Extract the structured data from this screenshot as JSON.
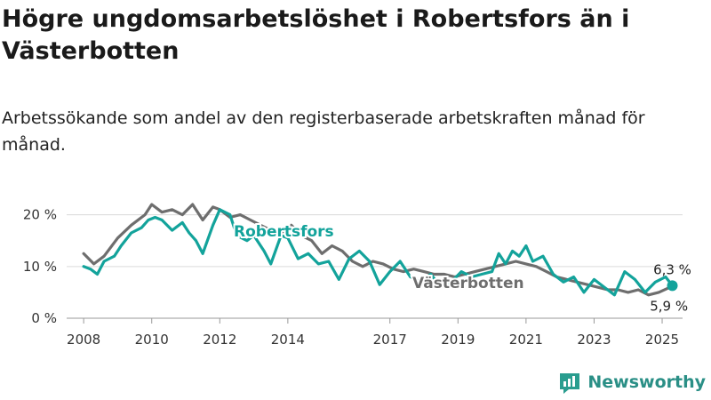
{
  "title": "Högre ungdomsarbetslöshet i Robertsfors än i Västerbotten",
  "subtitle": "Arbetssökande som andel av den registerbaserade arbetskraften månad för månad.",
  "brand": {
    "name": "Newsworthy",
    "color": "#2a9d8f"
  },
  "chart_data": {
    "type": "line",
    "ylim": [
      0,
      22
    ],
    "xlim": [
      2007.5,
      2025.6
    ],
    "y_ticks": [
      {
        "value": 0,
        "label": "0 %"
      },
      {
        "value": 10,
        "label": "10 %"
      },
      {
        "value": 20,
        "label": "20 %"
      }
    ],
    "x_ticks": [
      {
        "value": 2008,
        "label": "2008"
      },
      {
        "value": 2010,
        "label": "2010"
      },
      {
        "value": 2012,
        "label": "2012"
      },
      {
        "value": 2014,
        "label": "2014"
      },
      {
        "value": 2017,
        "label": "2017"
      },
      {
        "value": 2019,
        "label": "2019"
      },
      {
        "value": 2021,
        "label": "2021"
      },
      {
        "value": 2023,
        "label": "2023"
      },
      {
        "value": 2025,
        "label": "2025"
      }
    ],
    "series": [
      {
        "name": "Västerbotten",
        "color": "#6e6e6e",
        "end_label": "5,9 %",
        "x": [
          2008.0,
          2008.3,
          2008.6,
          2009.0,
          2009.4,
          2009.8,
          2010.0,
          2010.3,
          2010.6,
          2010.9,
          2011.2,
          2011.5,
          2011.8,
          2012.0,
          2012.3,
          2012.6,
          2012.9,
          2013.2,
          2013.5,
          2013.8,
          2014.1,
          2014.4,
          2014.7,
          2015.0,
          2015.3,
          2015.6,
          2015.9,
          2016.2,
          2016.5,
          2016.8,
          2017.1,
          2017.4,
          2017.7,
          2018.0,
          2018.3,
          2018.6,
          2018.9,
          2019.2,
          2019.5,
          2019.8,
          2020.1,
          2020.4,
          2020.7,
          2021.0,
          2021.3,
          2021.6,
          2021.9,
          2022.2,
          2022.5,
          2022.8,
          2023.1,
          2023.4,
          2023.7,
          2024.0,
          2024.3,
          2024.6,
          2024.9,
          2025.2
        ],
        "y": [
          12.5,
          10.5,
          12.0,
          15.5,
          18.0,
          20.0,
          22.0,
          20.5,
          21.0,
          20.0,
          22.0,
          19.0,
          21.5,
          21.0,
          19.5,
          20.0,
          19.0,
          18.0,
          17.0,
          16.5,
          18.0,
          16.0,
          15.0,
          12.5,
          14.0,
          13.0,
          11.0,
          10.0,
          11.0,
          10.5,
          9.5,
          9.0,
          9.5,
          9.0,
          8.5,
          8.5,
          8.0,
          8.5,
          9.0,
          9.5,
          10.0,
          10.5,
          11.0,
          10.5,
          10.0,
          9.0,
          8.0,
          7.5,
          7.0,
          6.5,
          6.0,
          5.5,
          5.5,
          5.0,
          5.5,
          4.5,
          5.0,
          5.9
        ]
      },
      {
        "name": "Robertsfors",
        "color": "#13a39b",
        "end_label": "6,3 %",
        "x": [
          2008.0,
          2008.2,
          2008.4,
          2008.6,
          2008.9,
          2009.1,
          2009.4,
          2009.7,
          2009.9,
          2010.1,
          2010.3,
          2010.6,
          2010.9,
          2011.1,
          2011.3,
          2011.5,
          2011.8,
          2012.0,
          2012.3,
          2012.5,
          2012.8,
          2013.0,
          2013.3,
          2013.5,
          2013.8,
          2014.0,
          2014.3,
          2014.6,
          2014.9,
          2015.2,
          2015.5,
          2015.8,
          2016.1,
          2016.4,
          2016.7,
          2017.0,
          2017.3,
          2017.6,
          2017.9,
          2018.2,
          2018.5,
          2018.8,
          2019.1,
          2019.4,
          2019.7,
          2020.0,
          2020.2,
          2020.4,
          2020.6,
          2020.8,
          2021.0,
          2021.2,
          2021.5,
          2021.8,
          2022.1,
          2022.4,
          2022.7,
          2023.0,
          2023.3,
          2023.6,
          2023.9,
          2024.2,
          2024.5,
          2024.8,
          2025.1,
          2025.3
        ],
        "y": [
          10.0,
          9.5,
          8.5,
          11.0,
          12.0,
          14.0,
          16.5,
          17.5,
          19.0,
          19.5,
          19.0,
          17.0,
          18.5,
          16.5,
          15.0,
          12.5,
          18.0,
          21.0,
          20.0,
          16.0,
          15.0,
          16.0,
          13.0,
          10.5,
          16.0,
          15.5,
          11.5,
          12.5,
          10.5,
          11.0,
          7.5,
          11.5,
          13.0,
          11.0,
          6.5,
          9.0,
          11.0,
          8.0,
          7.0,
          8.5,
          6.0,
          7.0,
          9.0,
          8.0,
          8.5,
          9.0,
          12.5,
          10.5,
          13.0,
          12.0,
          14.0,
          11.0,
          12.0,
          8.5,
          7.0,
          8.0,
          5.0,
          7.5,
          6.0,
          4.5,
          9.0,
          7.5,
          5.0,
          7.0,
          8.0,
          6.3
        ]
      }
    ]
  }
}
